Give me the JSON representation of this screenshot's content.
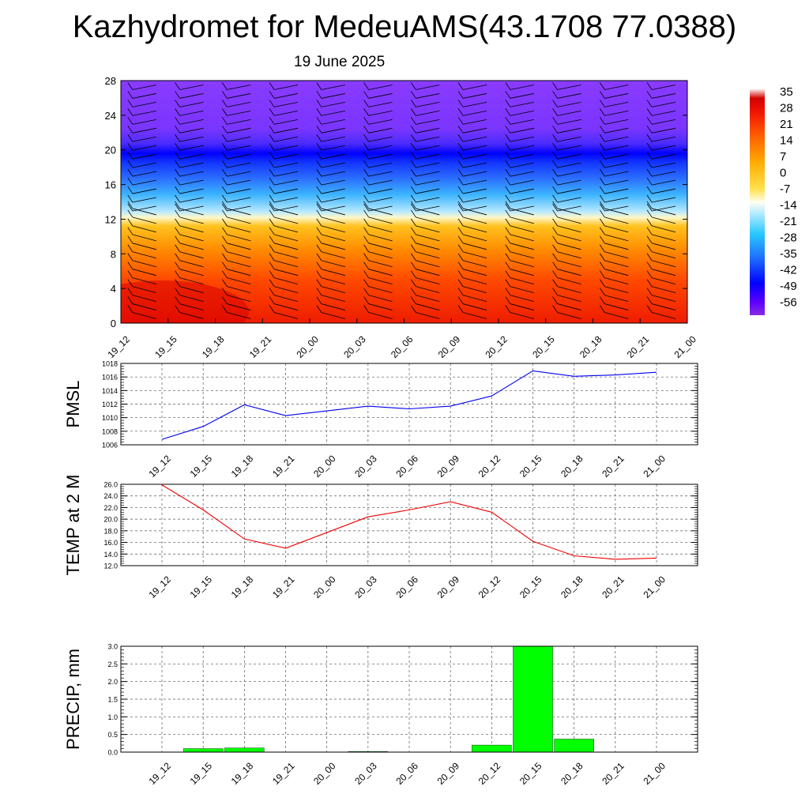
{
  "title": "Kazhydromet for MedeuAMS(43.1708 77.0388)",
  "subtitle": "19 June 2025",
  "colors": {
    "pmsl_line": "#0000ee",
    "temp_line": "#ee0000",
    "precip_bar": "#00ff00"
  },
  "chart_data": [
    {
      "type": "heatmap",
      "x": [
        "19_12",
        "19_15",
        "19_18",
        "19_21",
        "20_00",
        "20_03",
        "20_06",
        "20_09",
        "20_12",
        "20_15",
        "20_18",
        "20_21",
        "21_00"
      ],
      "ylim": [
        0,
        28
      ],
      "yticks": [
        "0",
        "4",
        "8",
        "12",
        "16",
        "20",
        "24",
        "28"
      ],
      "colorbar": {
        "labels": [
          "35",
          "28",
          "21",
          "14",
          "7",
          "0",
          "-7",
          "-14",
          "-21",
          "-28",
          "-35",
          "-42",
          "-49",
          "-56"
        ],
        "range": [
          -60,
          38
        ]
      },
      "overlay": "wind barbs"
    },
    {
      "type": "line",
      "ylabel": "PMSL",
      "x": [
        "19_12",
        "19_15",
        "19_18",
        "19_21",
        "20_00",
        "20_03",
        "20_06",
        "20_09",
        "20_12",
        "20_15",
        "20_18",
        "20_21",
        "21_00"
      ],
      "values": [
        1006.8,
        1008.7,
        1011.9,
        1010.3,
        1011.0,
        1011.7,
        1011.3,
        1011.7,
        1013.2,
        1016.9,
        1016.1,
        1016.3,
        1016.7
      ],
      "ylim": [
        1006,
        1018
      ],
      "yticks": [
        "1006",
        "1008",
        "1010",
        "1012",
        "1014",
        "1016",
        "1018"
      ],
      "grid": true
    },
    {
      "type": "line",
      "ylabel": "TEMP at 2 M",
      "x": [
        "19_12",
        "19_15",
        "19_18",
        "19_21",
        "20_00",
        "20_03",
        "20_06",
        "20_09",
        "20_12",
        "20_15",
        "20_18",
        "20_21",
        "21_00"
      ],
      "values": [
        25.9,
        21.6,
        16.6,
        15.0,
        17.7,
        20.4,
        21.6,
        23.0,
        21.2,
        16.2,
        13.7,
        13.1,
        13.3
      ],
      "ylim": [
        12,
        26
      ],
      "yticks": [
        "12.0",
        "14.0",
        "16.0",
        "18.0",
        "20.0",
        "22.0",
        "24.0",
        "26.0"
      ],
      "grid": true
    },
    {
      "type": "bar",
      "ylabel": "PRECIP, mm",
      "x": [
        "19_12",
        "19_15",
        "19_18",
        "19_21",
        "20_00",
        "20_03",
        "20_06",
        "20_09",
        "20_12",
        "20_15",
        "20_18",
        "20_21",
        "21_00"
      ],
      "values": [
        0,
        0.1,
        0.12,
        0,
        0,
        0.02,
        0,
        0,
        0.2,
        3.0,
        0.37,
        0,
        0
      ],
      "ylim": [
        0,
        3.0
      ],
      "yticks": [
        "0.0",
        "0.5",
        "1.0",
        "1.5",
        "2.0",
        "2.5",
        "3.0"
      ],
      "grid": true
    }
  ]
}
